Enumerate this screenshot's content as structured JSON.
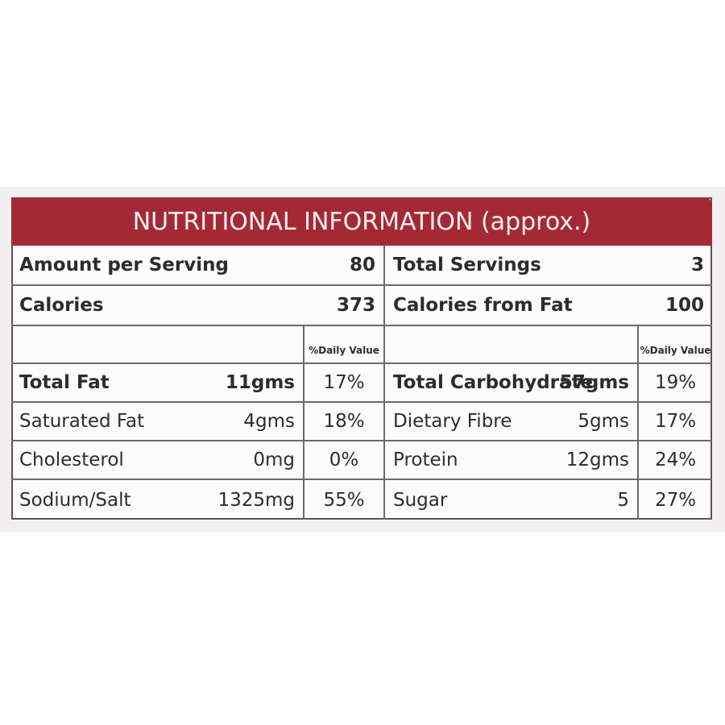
{
  "header": {
    "title": "NUTRITIONAL INFORMATION (approx.)"
  },
  "summary": {
    "rows": [
      [
        "Amount per Serving",
        "80",
        "Total Servings",
        "3"
      ],
      [
        "Calories",
        "373",
        "Calories from Fat",
        "100"
      ]
    ]
  },
  "daily_value_header": [
    "%Daily Value",
    "%Daily Value"
  ],
  "nutrients": {
    "rows": [
      [
        "Total Fat",
        "11gms",
        "17%",
        "Total Carbohydrate",
        "57gms",
        "19%"
      ],
      [
        "Saturated Fat",
        "4gms",
        "18%",
        "Dietary Fibre",
        "5gms",
        "17%"
      ],
      [
        "Cholesterol",
        "0mg",
        "0%",
        "Protein",
        "12gms",
        "24%"
      ],
      [
        "Sodium/Salt",
        "1325mg",
        "55%",
        "Sugar",
        "5",
        "27%"
      ]
    ]
  }
}
